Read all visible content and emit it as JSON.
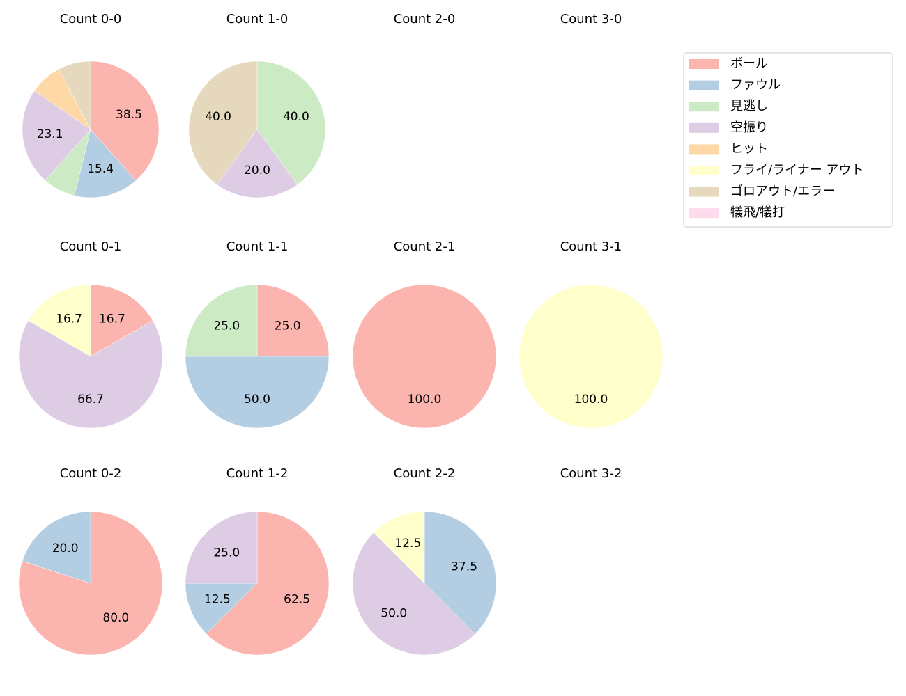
{
  "chart_data": [
    {
      "type": "pie",
      "title": "Count 0-0",
      "categories": [
        "ボール",
        "ファウル",
        "見逃し",
        "空振り",
        "ヒット",
        "ゴロアウト/エラー"
      ],
      "values": [
        38.5,
        15.4,
        7.7,
        23.1,
        7.7,
        7.7
      ],
      "value_labels": [
        "38.5",
        "15.4",
        null,
        "23.1",
        null,
        null
      ],
      "colors": [
        "#fbb4ae",
        "#b3cde3",
        "#ccebc5",
        "#decbe4",
        "#fed9a6",
        "#e5d8bd"
      ]
    },
    {
      "type": "pie",
      "title": "Count 1-0",
      "categories": [
        "見逃し",
        "空振り",
        "ゴロアウト/エラー"
      ],
      "values": [
        40,
        20,
        40
      ],
      "value_labels": [
        "40.0",
        "20.0",
        "40.0"
      ],
      "colors": [
        "#ccebc5",
        "#decbe4",
        "#e5d8bd"
      ]
    },
    {
      "type": "pie",
      "title": "Count 2-0",
      "categories": [],
      "values": [],
      "value_labels": [],
      "colors": []
    },
    {
      "type": "pie",
      "title": "Count 3-0",
      "categories": [],
      "values": [],
      "value_labels": [],
      "colors": []
    },
    {
      "type": "pie",
      "title": "Count 0-1",
      "categories": [
        "ボール",
        "空振り",
        "フライ/ライナー アウト"
      ],
      "values": [
        16.7,
        66.7,
        16.7
      ],
      "value_labels": [
        "16.7",
        "66.7",
        "16.7"
      ],
      "colors": [
        "#fbb4ae",
        "#decbe4",
        "#ffffcc"
      ]
    },
    {
      "type": "pie",
      "title": "Count 1-1",
      "categories": [
        "ボール",
        "ファウル",
        "見逃し"
      ],
      "values": [
        25,
        50,
        25
      ],
      "value_labels": [
        "25.0",
        "50.0",
        "25.0"
      ],
      "colors": [
        "#fbb4ae",
        "#b3cde3",
        "#ccebc5"
      ]
    },
    {
      "type": "pie",
      "title": "Count 2-1",
      "categories": [
        "ボール"
      ],
      "values": [
        100
      ],
      "value_labels": [
        "100.0"
      ],
      "colors": [
        "#fbb4ae"
      ]
    },
    {
      "type": "pie",
      "title": "Count 3-1",
      "categories": [
        "フライ/ライナー アウト"
      ],
      "values": [
        100
      ],
      "value_labels": [
        "100.0"
      ],
      "colors": [
        "#ffffcc"
      ]
    },
    {
      "type": "pie",
      "title": "Count 0-2",
      "categories": [
        "ボール",
        "ファウル"
      ],
      "values": [
        80,
        20
      ],
      "value_labels": [
        "80.0",
        "20.0"
      ],
      "colors": [
        "#fbb4ae",
        "#b3cde3"
      ]
    },
    {
      "type": "pie",
      "title": "Count 1-2",
      "categories": [
        "ボール",
        "ファウル",
        "空振り"
      ],
      "values": [
        62.5,
        12.5,
        25
      ],
      "value_labels": [
        "62.5",
        "12.5",
        "25.0"
      ],
      "colors": [
        "#fbb4ae",
        "#b3cde3",
        "#decbe4"
      ]
    },
    {
      "type": "pie",
      "title": "Count 2-2",
      "categories": [
        "ファウル",
        "空振り",
        "フライ/ライナー アウト"
      ],
      "values": [
        37.5,
        50,
        12.5
      ],
      "value_labels": [
        "37.5",
        "50.0",
        "12.5"
      ],
      "colors": [
        "#b3cde3",
        "#decbe4",
        "#ffffcc"
      ]
    },
    {
      "type": "pie",
      "title": "Count 3-2",
      "categories": [],
      "values": [],
      "value_labels": [],
      "colors": []
    }
  ],
  "legend": {
    "position": "upper right",
    "labels": [
      "ボール",
      "ファウル",
      "見逃し",
      "空振り",
      "ヒット",
      "フライ/ライナー アウト",
      "ゴロアウト/エラー",
      "犠飛/犠打"
    ],
    "colors": [
      "#fbb4ae",
      "#b3cde3",
      "#ccebc5",
      "#decbe4",
      "#fed9a6",
      "#ffffcc",
      "#e5d8bd",
      "#fddaec"
    ]
  }
}
